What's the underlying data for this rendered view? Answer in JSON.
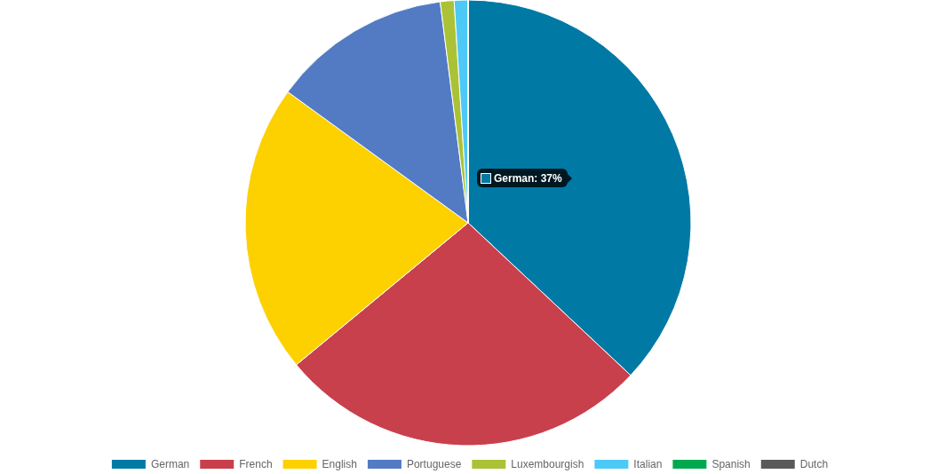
{
  "chart_data": {
    "type": "pie",
    "categories": [
      "German",
      "French",
      "English",
      "Portuguese",
      "Luxembourgish",
      "Italian",
      "Spanish",
      "Dutch"
    ],
    "values": [
      37,
      27,
      21,
      13,
      1,
      1,
      0,
      0
    ],
    "colors": [
      "#0079a5",
      "#c8404c",
      "#fdd000",
      "#537bc4",
      "#acc236",
      "#4dc9f6",
      "#00a950",
      "#58595b"
    ],
    "legend": "bottom",
    "annotations": [
      "German: 37%"
    ]
  }
}
